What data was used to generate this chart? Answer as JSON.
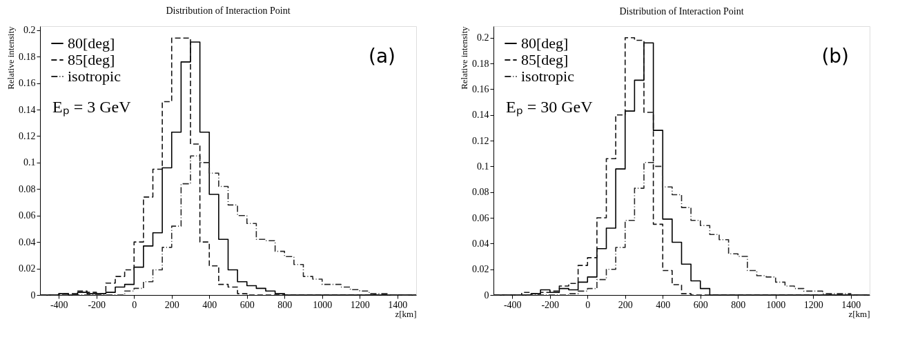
{
  "chart_data": [
    {
      "type": "histogram",
      "title": "Distribution of Interaction Point",
      "xlabel": "z[km]",
      "ylabel": "Relative intensity",
      "bins": [
        -500,
        -450,
        -400,
        -350,
        -300,
        -250,
        -200,
        -150,
        -100,
        -50,
        0,
        50,
        100,
        150,
        200,
        250,
        300,
        350,
        400,
        450,
        500,
        550,
        600,
        650,
        700,
        750,
        800,
        850,
        900,
        950,
        1000,
        1050,
        1100,
        1150,
        1200,
        1250,
        1300,
        1350,
        1400,
        1450,
        1500
      ],
      "series": [
        {
          "name": "80[deg]",
          "color": "#000000",
          "line_style": "solid",
          "values": [
            0,
            0,
            0.001,
            0,
            0.002,
            0.001,
            0.001,
            0.002,
            0.006,
            0.008,
            0.021,
            0.037,
            0.047,
            0.096,
            0.123,
            0.176,
            0.191,
            0.123,
            0.076,
            0.042,
            0.019,
            0.01,
            0.007,
            0.005,
            0.003,
            0.001,
            0,
            0,
            0,
            0,
            0,
            0,
            0,
            0,
            0,
            0,
            0,
            0,
            0,
            0
          ]
        },
        {
          "name": "85[deg]",
          "color": "#141414",
          "line_style": "dashed",
          "values": [
            0,
            0,
            0.001,
            0.001,
            0.003,
            0.002,
            0.001,
            0.009,
            0.014,
            0.019,
            0.04,
            0.074,
            0.095,
            0.146,
            0.194,
            0.194,
            0.114,
            0.04,
            0.022,
            0.008,
            0.006,
            0.001,
            0,
            0,
            0,
            0,
            0,
            0,
            0,
            0,
            0,
            0,
            0,
            0,
            0,
            0,
            0,
            0,
            0,
            0
          ]
        },
        {
          "name": "isotropic",
          "color": "#282828",
          "line_style": "dashdot",
          "values": [
            0,
            0,
            0,
            0,
            0,
            0,
            0,
            0,
            0,
            0.003,
            0.005,
            0.01,
            0.019,
            0.036,
            0.052,
            0.084,
            0.105,
            0.1,
            0.092,
            0.082,
            0.068,
            0.06,
            0.054,
            0.042,
            0.041,
            0.033,
            0.029,
            0.023,
            0.014,
            0.012,
            0.008,
            0.008,
            0.006,
            0.004,
            0.003,
            0.001,
            0.001,
            0,
            0,
            0
          ]
        }
      ],
      "xlim": [
        -500,
        1500
      ],
      "xticks": [
        -400,
        -200,
        0,
        200,
        400,
        600,
        800,
        1000,
        1200,
        1400
      ],
      "ylim": [
        0,
        0.203
      ],
      "yticks": [
        0,
        0.02,
        0.04,
        0.06,
        0.08,
        0.1,
        0.12,
        0.14,
        0.16,
        0.18,
        0.2
      ],
      "grid": false,
      "legend": "top left",
      "annotations": [
        "Eₚ = 3 GeV",
        "(a)"
      ]
    },
    {
      "type": "histogram",
      "title": "Distribution of Interaction Point",
      "xlabel": "z[km]",
      "ylabel": "Relative intensity",
      "bins": [
        -500,
        -450,
        -400,
        -350,
        -300,
        -250,
        -200,
        -150,
        -100,
        -50,
        0,
        50,
        100,
        150,
        200,
        250,
        300,
        350,
        400,
        450,
        500,
        550,
        600,
        650,
        700,
        750,
        800,
        850,
        900,
        950,
        1000,
        1050,
        1100,
        1150,
        1200,
        1250,
        1300,
        1350,
        1400,
        1450,
        1500
      ],
      "series": [
        {
          "name": "80[deg]",
          "color": "#000000",
          "line_style": "solid",
          "values": [
            0,
            0,
            0,
            0,
            0.001,
            0.004,
            0.002,
            0.005,
            0.004,
            0.01,
            0.014,
            0.036,
            0.052,
            0.098,
            0.143,
            0.167,
            0.196,
            0.128,
            0.059,
            0.041,
            0.024,
            0.011,
            0.005,
            0,
            0,
            0,
            0,
            0,
            0,
            0,
            0,
            0,
            0,
            0,
            0,
            0,
            0,
            0,
            0,
            0
          ]
        },
        {
          "name": "85[deg]",
          "color": "#141414",
          "line_style": "dashed",
          "values": [
            0,
            0,
            0,
            0.002,
            0.001,
            0.002,
            0.003,
            0.007,
            0.009,
            0.023,
            0.029,
            0.06,
            0.106,
            0.14,
            0.2,
            0.198,
            0.142,
            0.055,
            0.019,
            0.008,
            0.001,
            0,
            0,
            0,
            0,
            0,
            0,
            0,
            0,
            0,
            0,
            0,
            0,
            0,
            0,
            0,
            0,
            0,
            0,
            0
          ]
        },
        {
          "name": "isotropic",
          "color": "#282828",
          "line_style": "dashdot",
          "values": [
            0,
            0,
            0,
            0,
            0,
            0,
            0,
            0,
            0.001,
            0.003,
            0.005,
            0.012,
            0.02,
            0.037,
            0.058,
            0.083,
            0.103,
            0.1,
            0.084,
            0.078,
            0.068,
            0.058,
            0.054,
            0.047,
            0.043,
            0.032,
            0.03,
            0.019,
            0.015,
            0.014,
            0.01,
            0.007,
            0.005,
            0.003,
            0.003,
            0.001,
            0.001,
            0.001,
            0,
            0
          ]
        }
      ],
      "xlim": [
        -500,
        1500
      ],
      "xticks": [
        -400,
        -200,
        0,
        200,
        400,
        600,
        800,
        1000,
        1200,
        1400
      ],
      "ylim": [
        0,
        0.209
      ],
      "yticks": [
        0,
        0.02,
        0.04,
        0.06,
        0.08,
        0.1,
        0.12,
        0.14,
        0.16,
        0.18,
        0.2
      ],
      "grid": false,
      "legend": "top left",
      "annotations": [
        "Eₚ = 30 GeV",
        "(b)"
      ]
    }
  ]
}
